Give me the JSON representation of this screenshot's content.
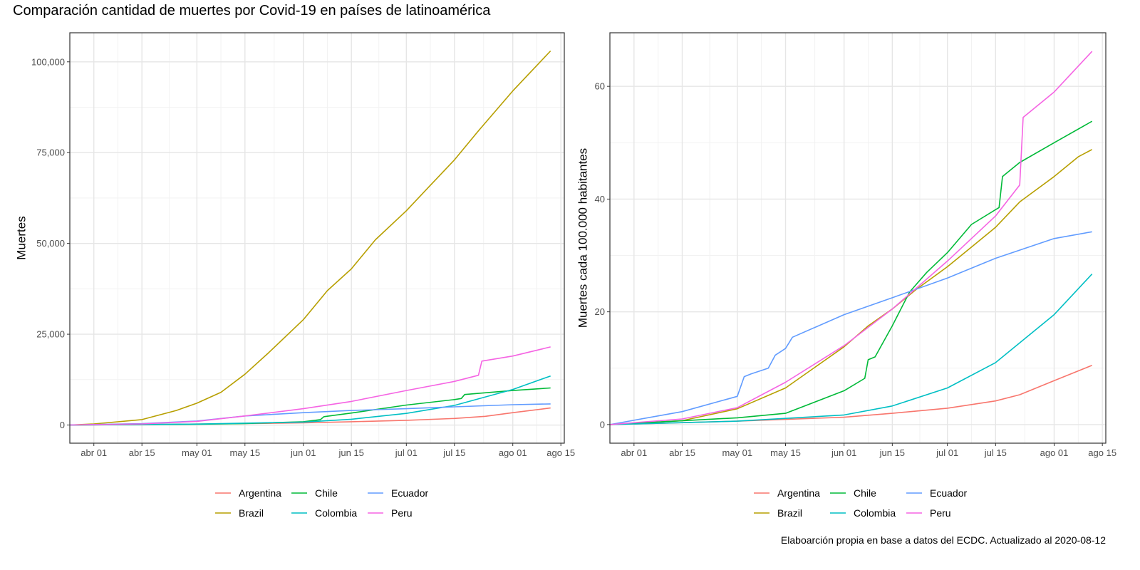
{
  "title": "Comparación cantidad de muertes por Covid-19 en países de latinoamérica",
  "caption": "Elaboarción propia en base a datos del ECDC.  Actualizado al  2020-08-12",
  "colors": {
    "Argentina": "#F8766D",
    "Brazil": "#B79F00",
    "Chile": "#00BA38",
    "Colombia": "#00BFC4",
    "Ecuador": "#619CFF",
    "Peru": "#F564E3"
  },
  "chart_data": [
    {
      "type": "line",
      "xlabel": "",
      "ylabel": "Muertes",
      "x_ticks": [
        "abr 01",
        "abr 15",
        "may 01",
        "may 15",
        "jun 01",
        "jun 15",
        "jul 01",
        "jul 15",
        "ago 01",
        "ago 15"
      ],
      "y_ticks": [
        "0",
        "25,000",
        "50,000",
        "75,000",
        "100,000"
      ],
      "ylim": [
        -5000,
        108000
      ],
      "xlim": [
        "2020-03-25",
        "2020-08-16"
      ],
      "grid": true,
      "legend": [
        "Argentina",
        "Chile",
        "Ecuador",
        "Brazil",
        "Colombia",
        "Peru"
      ],
      "legend_position": "bottom",
      "series": [
        {
          "name": "Argentina",
          "x": [
            "2020-03-25",
            "2020-04-15",
            "2020-05-01",
            "2020-05-15",
            "2020-06-01",
            "2020-06-15",
            "2020-07-01",
            "2020-07-15",
            "2020-07-24",
            "2020-08-01",
            "2020-08-12"
          ],
          "y": [
            0,
            100,
            250,
            400,
            600,
            900,
            1300,
            1800,
            2400,
            3400,
            4700
          ]
        },
        {
          "name": "Brazil",
          "x": [
            "2020-03-25",
            "2020-04-01",
            "2020-04-15",
            "2020-04-25",
            "2020-05-01",
            "2020-05-08",
            "2020-05-15",
            "2020-05-22",
            "2020-06-01",
            "2020-06-08",
            "2020-06-15",
            "2020-06-22",
            "2020-07-01",
            "2020-07-08",
            "2020-07-15",
            "2020-07-22",
            "2020-08-01",
            "2020-08-08",
            "2020-08-12"
          ],
          "y": [
            0,
            300,
            1500,
            4000,
            6000,
            9000,
            14000,
            20000,
            29000,
            37000,
            43000,
            51000,
            59000,
            66000,
            73000,
            81000,
            92000,
            99000,
            103000
          ]
        },
        {
          "name": "Chile",
          "x": [
            "2020-03-25",
            "2020-05-01",
            "2020-05-15",
            "2020-06-01",
            "2020-06-06",
            "2020-06-07",
            "2020-06-15",
            "2020-07-01",
            "2020-07-15",
            "2020-07-17",
            "2020-07-18",
            "2020-08-01",
            "2020-08-12"
          ],
          "y": [
            0,
            200,
            400,
            900,
            1500,
            2300,
            3300,
            5500,
            7000,
            7300,
            8400,
            9500,
            10200
          ]
        },
        {
          "name": "Colombia",
          "x": [
            "2020-03-25",
            "2020-05-01",
            "2020-06-01",
            "2020-06-15",
            "2020-07-01",
            "2020-07-15",
            "2020-08-01",
            "2020-08-12"
          ],
          "y": [
            0,
            250,
            800,
            1600,
            3200,
            5400,
            9800,
            13500
          ]
        },
        {
          "name": "Ecuador",
          "x": [
            "2020-03-25",
            "2020-04-15",
            "2020-05-01",
            "2020-05-15",
            "2020-06-01",
            "2020-06-15",
            "2020-07-01",
            "2020-07-15",
            "2020-08-01",
            "2020-08-12"
          ],
          "y": [
            0,
            400,
            1100,
            2500,
            3400,
            4000,
            4500,
            5000,
            5600,
            5800
          ]
        },
        {
          "name": "Peru",
          "x": [
            "2020-03-25",
            "2020-04-15",
            "2020-05-01",
            "2020-05-15",
            "2020-06-01",
            "2020-06-15",
            "2020-07-01",
            "2020-07-15",
            "2020-07-22",
            "2020-07-23",
            "2020-08-01",
            "2020-08-12"
          ],
          "y": [
            0,
            300,
            1000,
            2500,
            4500,
            6500,
            9500,
            12000,
            13700,
            17600,
            19000,
            21500
          ]
        }
      ]
    },
    {
      "type": "line",
      "xlabel": "",
      "ylabel": "Muertes cada 100.000 habitantes",
      "x_ticks": [
        "abr 01",
        "abr 15",
        "may 01",
        "may 15",
        "jun 01",
        "jun 15",
        "jul 01",
        "jul 15",
        "ago 01",
        "ago 15"
      ],
      "y_ticks": [
        "0",
        "20",
        "40",
        "60"
      ],
      "ylim": [
        -3.3,
        69.5
      ],
      "xlim": [
        "2020-03-25",
        "2020-08-16"
      ],
      "grid": true,
      "legend": [
        "Argentina",
        "Chile",
        "Ecuador",
        "Brazil",
        "Colombia",
        "Peru"
      ],
      "legend_position": "bottom",
      "series": [
        {
          "name": "Argentina",
          "x": [
            "2020-03-25",
            "2020-05-01",
            "2020-06-01",
            "2020-06-15",
            "2020-07-01",
            "2020-07-15",
            "2020-07-22",
            "2020-08-01",
            "2020-08-12"
          ],
          "y": [
            0,
            0.6,
            1.3,
            2.0,
            2.9,
            4.2,
            5.3,
            7.8,
            10.5
          ]
        },
        {
          "name": "Brazil",
          "x": [
            "2020-03-25",
            "2020-04-15",
            "2020-05-01",
            "2020-05-15",
            "2020-06-01",
            "2020-06-08",
            "2020-06-15",
            "2020-06-22",
            "2020-07-01",
            "2020-07-08",
            "2020-07-15",
            "2020-07-22",
            "2020-08-01",
            "2020-08-08",
            "2020-08-12"
          ],
          "y": [
            0,
            0.7,
            2.8,
            6.5,
            13.8,
            17.5,
            20.5,
            24.0,
            28.0,
            31.5,
            35.0,
            39.5,
            44.0,
            47.5,
            48.8
          ]
        },
        {
          "name": "Chile",
          "x": [
            "2020-03-25",
            "2020-05-01",
            "2020-05-15",
            "2020-06-01",
            "2020-06-07",
            "2020-06-08",
            "2020-06-10",
            "2020-06-15",
            "2020-06-20",
            "2020-06-25",
            "2020-07-01",
            "2020-07-08",
            "2020-07-16",
            "2020-07-17",
            "2020-07-22",
            "2020-08-01",
            "2020-08-12"
          ],
          "y": [
            0,
            1.2,
            2.0,
            6.0,
            8.2,
            11.5,
            12.0,
            17.5,
            23.5,
            27.0,
            30.5,
            35.5,
            38.5,
            44.0,
            46.5,
            50.0,
            53.8
          ]
        },
        {
          "name": "Colombia",
          "x": [
            "2020-03-25",
            "2020-05-01",
            "2020-06-01",
            "2020-06-15",
            "2020-07-01",
            "2020-07-15",
            "2020-08-01",
            "2020-08-12"
          ],
          "y": [
            0,
            0.6,
            1.7,
            3.3,
            6.5,
            11.0,
            19.5,
            26.7
          ]
        },
        {
          "name": "Ecuador",
          "x": [
            "2020-03-25",
            "2020-04-15",
            "2020-05-01",
            "2020-05-03",
            "2020-05-05",
            "2020-05-10",
            "2020-05-12",
            "2020-05-15",
            "2020-05-17",
            "2020-06-01",
            "2020-06-15",
            "2020-07-01",
            "2020-07-15",
            "2020-08-01",
            "2020-08-12"
          ],
          "y": [
            0,
            2.3,
            5.0,
            8.5,
            9.0,
            10.0,
            12.3,
            13.5,
            15.5,
            19.5,
            22.5,
            26.0,
            29.5,
            33.0,
            34.2
          ]
        },
        {
          "name": "Peru",
          "x": [
            "2020-03-25",
            "2020-04-15",
            "2020-05-01",
            "2020-05-15",
            "2020-06-01",
            "2020-06-15",
            "2020-07-01",
            "2020-07-15",
            "2020-07-22",
            "2020-07-23",
            "2020-08-01",
            "2020-08-12"
          ],
          "y": [
            0,
            1.0,
            3.0,
            7.5,
            14.0,
            20.5,
            29.0,
            37.0,
            42.5,
            54.5,
            59.0,
            66.2
          ]
        }
      ]
    }
  ]
}
